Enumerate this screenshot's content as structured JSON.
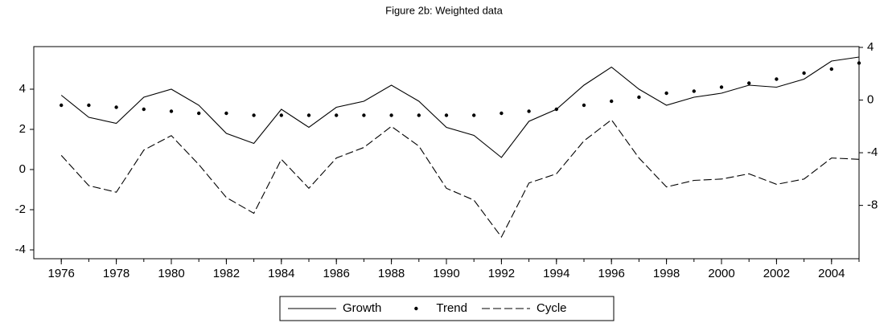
{
  "chart_data": {
    "type": "line",
    "title": "Figure 2b: Weighted data",
    "x": [
      1976,
      1977,
      1978,
      1979,
      1980,
      1981,
      1982,
      1983,
      1984,
      1985,
      1986,
      1987,
      1988,
      1989,
      1990,
      1991,
      1992,
      1993,
      1994,
      1995,
      1996,
      1997,
      1998,
      1999,
      2000,
      2001,
      2002,
      2003,
      2004,
      2005
    ],
    "xlim": [
      1975,
      2005
    ],
    "xticks": [
      1976,
      1978,
      1980,
      1982,
      1984,
      1986,
      1988,
      1990,
      1992,
      1994,
      1996,
      1998,
      2000,
      2002,
      2004
    ],
    "ylim": [
      -4.44,
      6.12
    ],
    "yticks": [
      -4,
      -2,
      0,
      2,
      4
    ],
    "y2lim": [
      -12.05,
      4.06
    ],
    "y2ticks": [
      -8,
      -4,
      0,
      4
    ],
    "series": [
      {
        "name": "Growth",
        "color": "#000000",
        "style": "solid",
        "values": [
          3.7,
          2.6,
          2.3,
          3.6,
          4.0,
          3.2,
          1.8,
          1.3,
          3.0,
          2.1,
          3.1,
          3.4,
          4.2,
          3.4,
          2.1,
          1.7,
          0.6,
          2.4,
          3.0,
          4.2,
          5.1,
          4.0,
          3.2,
          3.6,
          3.8,
          4.2,
          4.1,
          4.5,
          5.4,
          5.6
        ]
      },
      {
        "name": "Trend",
        "color": "#000000",
        "style": "dots",
        "values": [
          3.2,
          3.2,
          3.1,
          3.0,
          2.9,
          2.8,
          2.8,
          2.7,
          2.7,
          2.7,
          2.7,
          2.7,
          2.7,
          2.7,
          2.7,
          2.7,
          2.8,
          2.9,
          3.0,
          3.2,
          3.4,
          3.6,
          3.8,
          3.9,
          4.1,
          4.3,
          4.5,
          4.8,
          5.0,
          5.3
        ]
      },
      {
        "name": "Cycle",
        "color": "#000000",
        "style": "dashed",
        "axis": "y2",
        "values": [
          -4.2,
          -6.5,
          -7.0,
          -3.8,
          -2.7,
          -4.9,
          -7.4,
          -8.6,
          -4.5,
          -6.7,
          -4.4,
          -3.6,
          -2.0,
          -3.5,
          -6.7,
          -7.6,
          -10.4,
          -6.3,
          -5.6,
          -3.1,
          -1.5,
          -4.4,
          -6.6,
          -6.1,
          -6.0,
          -5.6,
          -6.4,
          -6.0,
          -4.4,
          -4.5
        ]
      }
    ]
  }
}
